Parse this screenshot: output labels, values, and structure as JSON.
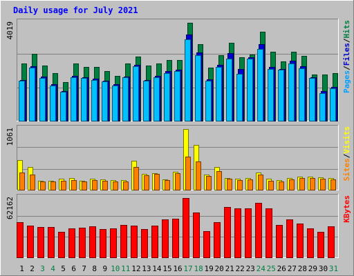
{
  "chart_data": {
    "type": "bar",
    "title": "Daily usage for July 2021",
    "categories": [
      "1",
      "2",
      "3",
      "4",
      "5",
      "6",
      "7",
      "8",
      "9",
      "10",
      "11",
      "12",
      "13",
      "14",
      "15",
      "16",
      "17",
      "18",
      "19",
      "20",
      "21",
      "22",
      "23",
      "24",
      "25",
      "26",
      "27",
      "28",
      "29",
      "30",
      "31"
    ],
    "weekend_days": [
      "3",
      "4",
      "10",
      "11",
      "17",
      "18",
      "24",
      "25",
      "31"
    ],
    "panels": [
      {
        "id": "hits",
        "max_label": "4019",
        "ymax": 4019,
        "axis_label_parts": [
          "Pages",
          "/",
          "Files",
          "/",
          "Hits"
        ],
        "series": [
          {
            "name": "Hits",
            "color": "#008040",
            "values": [
              2359,
              2755,
              2289,
              1975,
              1608,
              2368,
              2226,
              2226,
              2050,
              1843,
              2367,
              2629,
              2280,
              2367,
              2497,
              2499,
              4019,
              3153,
              2185,
              2710,
              3202,
              2621,
              2713,
              3654,
              2837,
              2449,
              2845,
              2667,
              1920,
              1917,
              1980
            ]
          },
          {
            "name": "Files",
            "color": "#0000d0",
            "values": [
              1680,
              2250,
              1830,
              1520,
              1250,
              1850,
              1800,
              1750,
              1660,
              1520,
              1830,
              2310,
              1700,
              1860,
              2050,
              2100,
              3540,
              2810,
              1710,
              2300,
              2770,
              2150,
              2600,
              3150,
              2230,
              2140,
              2460,
              2250,
              1810,
              1230,
              1400
            ]
          },
          {
            "name": "Pages",
            "color": "#00c0ff",
            "values": [
              1650,
              2200,
              1760,
              1470,
              1200,
              1800,
              1760,
              1680,
              1620,
              1470,
              1800,
              2250,
              1650,
              1810,
              1960,
              2050,
              3350,
              2700,
              1650,
              2210,
              2560,
              1950,
              2560,
              2960,
              2150,
              2100,
              2360,
              2160,
              1760,
              1150,
              1350
            ]
          }
        ]
      },
      {
        "id": "visits",
        "max_label": "1061",
        "ymax": 1061,
        "axis_label_parts": [
          "Sites",
          "/",
          "Visits"
        ],
        "series": [
          {
            "name": "Visits",
            "color": "#ffff00",
            "values": [
              530,
              410,
              170,
              165,
              200,
              220,
              170,
              200,
              190,
              180,
              180,
              510,
              290,
              300,
              190,
              320,
              1061,
              790,
              270,
              400,
              220,
              200,
              210,
              310,
              200,
              180,
              210,
              240,
              240,
              230,
              220
            ]
          },
          {
            "name": "Sites",
            "color": "#ff8000",
            "values": [
              310,
              280,
              160,
              150,
              170,
              180,
              150,
              180,
              170,
              160,
              160,
              400,
              260,
              290,
              180,
              300,
              580,
              500,
              250,
              330,
              200,
              180,
              190,
              270,
              170,
              160,
              190,
              220,
              210,
              200,
              190
            ]
          }
        ]
      },
      {
        "id": "kbytes",
        "max_label": "62162",
        "ymax": 62162,
        "axis_label_parts": [
          "KBytes"
        ],
        "series": [
          {
            "name": "KBytes",
            "color": "#ff0000",
            "values": [
              36800,
              33300,
              32300,
              32300,
              27200,
              30600,
              31400,
              32600,
              29800,
              30500,
              34100,
              33500,
              29800,
              33500,
              40200,
              40500,
              62162,
              47000,
              27700,
              37100,
              52600,
              51300,
              51600,
              57300,
              51600,
              34300,
              40100,
              35700,
              30600,
              27500,
              33200
            ]
          }
        ]
      }
    ]
  }
}
